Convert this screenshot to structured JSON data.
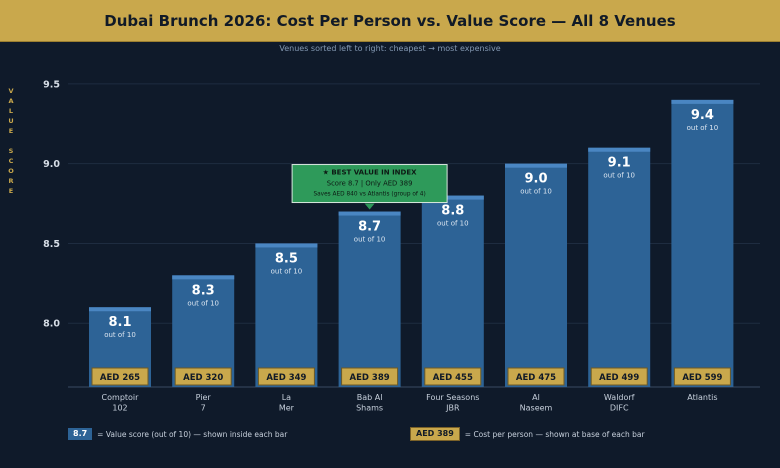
{
  "chart_data": {
    "type": "bar",
    "title": "Dubai Brunch 2026: Cost Per Person vs. Value Score — All 8 Venues",
    "subtitle": "Venues sorted left to right: cheapest → most expensive",
    "ylabel": "VALUE SCORE",
    "ylim": [
      7.6,
      9.65
    ],
    "yticks": [
      "8.0",
      "8.5",
      "9.0",
      "9.5"
    ],
    "categories": [
      [
        "Comptoir",
        "102"
      ],
      [
        "Pier",
        "7"
      ],
      [
        "La",
        "Mer"
      ],
      [
        "Bab Al",
        "Shams"
      ],
      [
        "Four Seasons",
        "JBR"
      ],
      [
        "Al",
        "Naseem"
      ],
      [
        "Waldorf",
        "DIFC"
      ],
      "Atlantis"
    ],
    "values": [
      8.1,
      8.3,
      8.5,
      8.7,
      8.8,
      9.0,
      9.1,
      9.4
    ],
    "value_labels": [
      "8.1",
      "8.3",
      "8.5",
      "8.7",
      "8.8",
      "9.0",
      "9.1",
      "9.4"
    ],
    "value_sublabel": "out of 10",
    "cost_labels": [
      "AED 265",
      "AED 320",
      "AED 349",
      "AED 389",
      "AED 455",
      "AED 475",
      "AED 499",
      "AED 599"
    ],
    "grid": true,
    "annotation": {
      "target_index": 3,
      "title": "★  BEST VALUE IN INDEX",
      "line1": "Score 8.7  |  Only AED 389",
      "line2": "Saves AED 840 vs Atlantis (group of 4)"
    },
    "legend": {
      "value_chip": "8.7",
      "value_text": "= Value score (out of 10) — shown inside each bar",
      "cost_chip": "AED 389",
      "cost_text": "= Cost per person — shown at base of each bar"
    },
    "colors": {
      "bar": "#2d6396",
      "bar_top": "#4a86c2",
      "gold": "#c9a84c",
      "annotation": "#2e9a5a",
      "background": "#0f1a2a"
    }
  }
}
